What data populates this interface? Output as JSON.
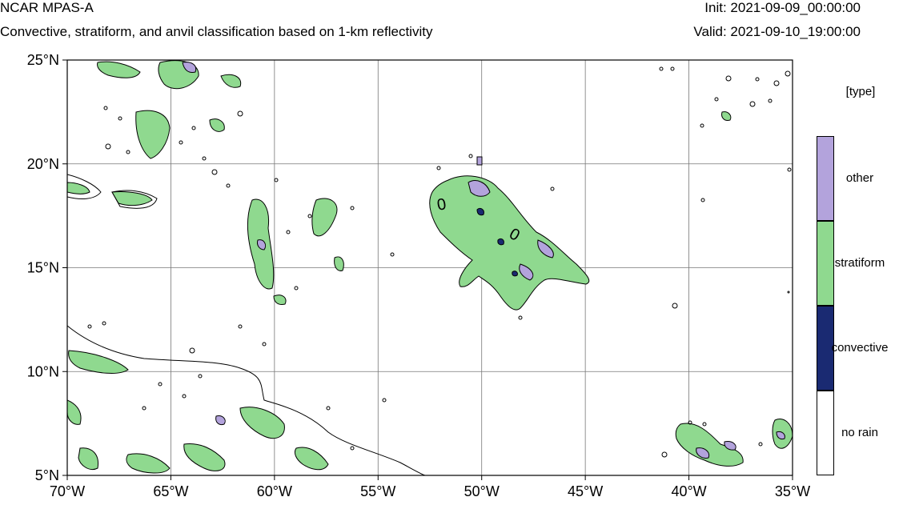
{
  "header": {
    "model_title": "NCAR MPAS-A",
    "subtitle": "Convective, stratiform, and anvil classification based on 1-km reflectivity",
    "init_time": "Init: 2021-09-09_00:00:00",
    "valid_time": "Valid: 2021-09-10_19:00:00"
  },
  "map": {
    "lon_range": [
      -70,
      -35
    ],
    "lat_range": [
      5,
      25
    ],
    "lon_ticks": [
      {
        "value": -70,
        "label": "70°W"
      },
      {
        "value": -65,
        "label": "65°W"
      },
      {
        "value": -60,
        "label": "60°W"
      },
      {
        "value": -55,
        "label": "55°W"
      },
      {
        "value": -50,
        "label": "50°W"
      },
      {
        "value": -45,
        "label": "45°W"
      },
      {
        "value": -40,
        "label": "40°W"
      },
      {
        "value": -35,
        "label": "35°W"
      }
    ],
    "lat_ticks": [
      {
        "value": 5,
        "label": "5°N"
      },
      {
        "value": 10,
        "label": "10°N"
      },
      {
        "value": 15,
        "label": "15°N"
      },
      {
        "value": 20,
        "label": "20°N"
      },
      {
        "value": 25,
        "label": "25°N"
      }
    ],
    "gridlines": true,
    "contour_label": "0",
    "colors": {
      "stratiform": "#8fd98f",
      "convective": "#1a2a72",
      "other": "#b3a3dc",
      "no_rain": "#ffffff",
      "outline": "#000000"
    }
  },
  "legend": {
    "title": "[type]",
    "items": [
      {
        "label": "other",
        "color": "#b3a3dc"
      },
      {
        "label": "stratiform",
        "color": "#8fd98f"
      },
      {
        "label": "convective",
        "color": "#1a2a72"
      },
      {
        "label": "no rain",
        "color": "#ffffff"
      }
    ]
  }
}
